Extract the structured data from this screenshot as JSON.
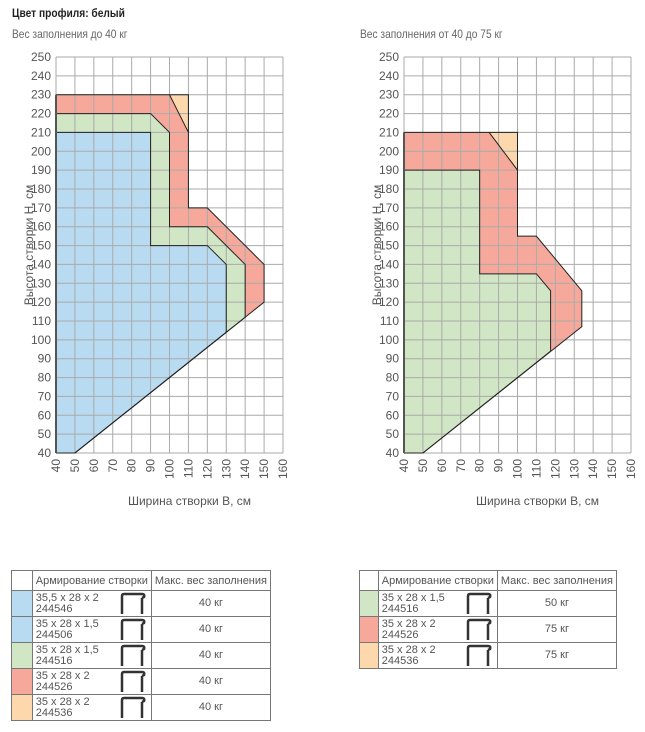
{
  "title": "Цвет профиля: белый",
  "colors": {
    "blue": "#b9dbf2",
    "green": "#d1e6c4",
    "red": "#f6a99b",
    "peach": "#fdd8ad"
  },
  "chart_data": [
    {
      "type": "area",
      "subtitle": "Вес заполнения до 40 кг",
      "xlabel": "Ширина створки B, см",
      "ylabel": "Высота створки H, см",
      "xlim": [
        40,
        160
      ],
      "ylim": [
        40,
        250
      ],
      "xticks": [
        40,
        50,
        60,
        70,
        80,
        90,
        100,
        110,
        120,
        130,
        140,
        150,
        160
      ],
      "yticks": [
        250,
        240,
        230,
        220,
        210,
        200,
        190,
        180,
        170,
        160,
        150,
        140,
        130,
        120,
        110,
        100,
        90,
        80,
        70,
        60,
        50,
        40
      ],
      "grid": true,
      "regions": [
        {
          "name": "244536",
          "color": "peach",
          "points": [
            [
              100,
              230
            ],
            [
              110,
              230
            ],
            [
              110,
              210
            ]
          ]
        },
        {
          "name": "244526",
          "color": "red",
          "points": [
            [
              40,
              230
            ],
            [
              100,
              230
            ],
            [
              110,
              210
            ],
            [
              110,
              170
            ],
            [
              120,
              170
            ],
            [
              150,
              140
            ],
            [
              150,
              120
            ],
            [
              50,
              40
            ],
            [
              40,
              40
            ]
          ]
        },
        {
          "name": "244516",
          "color": "green",
          "points": [
            [
              40,
              220
            ],
            [
              90,
              220
            ],
            [
              100,
              210
            ],
            [
              100,
              160
            ],
            [
              120,
              160
            ],
            [
              140,
              140
            ],
            [
              140,
              112
            ],
            [
              50,
              40
            ],
            [
              40,
              40
            ]
          ]
        },
        {
          "name": "244546/244506",
          "color": "blue",
          "points": [
            [
              40,
              210
            ],
            [
              90,
              210
            ],
            [
              90,
              150
            ],
            [
              120,
              150
            ],
            [
              130,
              140
            ],
            [
              130,
              104
            ],
            [
              50,
              40
            ],
            [
              40,
              40
            ]
          ]
        }
      ]
    },
    {
      "type": "area",
      "subtitle": "Вес заполнения от 40 до 75 кг",
      "xlabel": "Ширина створки B, см",
      "ylabel": "Высота створки H, см",
      "xlim": [
        40,
        160
      ],
      "ylim": [
        40,
        250
      ],
      "xticks": [
        40,
        50,
        60,
        70,
        80,
        90,
        100,
        110,
        120,
        130,
        140,
        150,
        160
      ],
      "yticks": [
        250,
        240,
        230,
        220,
        210,
        200,
        190,
        180,
        170,
        160,
        150,
        140,
        130,
        120,
        110,
        100,
        90,
        80,
        70,
        60,
        50,
        40
      ],
      "grid": true,
      "regions": [
        {
          "name": "244536",
          "color": "peach",
          "points": [
            [
              85,
              210
            ],
            [
              100,
              210
            ],
            [
              100,
              190
            ]
          ]
        },
        {
          "name": "244526",
          "color": "red",
          "points": [
            [
              40,
              210
            ],
            [
              85,
              210
            ],
            [
              100,
              190
            ],
            [
              100,
              155
            ],
            [
              110,
              155
            ],
            [
              134,
              126
            ],
            [
              134,
              107
            ],
            [
              50,
              40
            ],
            [
              40,
              40
            ]
          ]
        },
        {
          "name": "244516",
          "color": "green",
          "points": [
            [
              40,
              190
            ],
            [
              80,
              190
            ],
            [
              80,
              135
            ],
            [
              110,
              135
            ],
            [
              117.5,
              126
            ],
            [
              117.5,
              94
            ],
            [
              50,
              40
            ],
            [
              40,
              40
            ]
          ]
        }
      ]
    }
  ],
  "tables": [
    {
      "header": [
        "Армирование створки",
        "Макс. вес заполнения"
      ],
      "rows": [
        {
          "color": "blue",
          "size": "35,5 x 28 x 2",
          "code": "244546",
          "weight": "40 кг"
        },
        {
          "color": "blue",
          "size": "35 x 28 x 1,5",
          "code": "244506",
          "weight": "40 кг"
        },
        {
          "color": "green",
          "size": "35 x 28 x 1,5",
          "code": "244516",
          "weight": "40 кг"
        },
        {
          "color": "red",
          "size": "35 x 28 x 2",
          "code": "244526",
          "weight": "40 кг"
        },
        {
          "color": "peach",
          "size": "35 x 28 x 2",
          "code": "244536",
          "weight": "40 кг"
        }
      ]
    },
    {
      "header": [
        "Армирование створки",
        "Макс. вес заполнения"
      ],
      "rows": [
        {
          "color": "green",
          "size": "35 x 28 x 1,5",
          "code": "244516",
          "weight": "50 кг"
        },
        {
          "color": "red",
          "size": "35 x 28 x 2",
          "code": "244526",
          "weight": "75 кг"
        },
        {
          "color": "peach",
          "size": "35 x 28 x 2",
          "code": "244536",
          "weight": "75 кг"
        }
      ]
    }
  ]
}
